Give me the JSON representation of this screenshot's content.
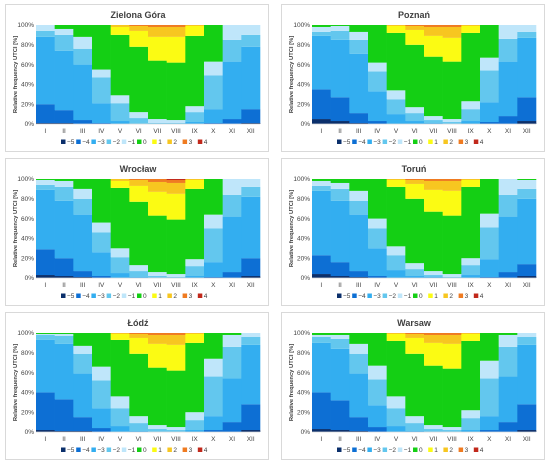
{
  "colors": {
    "-5": "#0b2f6b",
    "-4": "#0d6fd4",
    "-3": "#33aef0",
    "-2": "#63c7ee",
    "-1": "#bfe6fa",
    "0": "#14cf14",
    "1": "#fbfb13",
    "2": "#f7c620",
    "3": "#ef7b21",
    "4": "#c1281b"
  },
  "chart_data": [
    {
      "type": "bar",
      "stacked": true,
      "title": "Zielona Góra",
      "ylabel": "Relative frequency UTCI [%]",
      "yticks": [
        "0%",
        "20%",
        "40%",
        "60%",
        "80%",
        "100%"
      ],
      "ylim": [
        0,
        100
      ],
      "categories": [
        "I",
        "II",
        "III",
        "IV",
        "V",
        "VI",
        "VII",
        "VIII",
        "IX",
        "X",
        "XI",
        "XII"
      ],
      "legend": [
        "−5",
        "−4",
        "−3",
        "−2",
        "−1",
        "0",
        "1",
        "2",
        "3",
        "4"
      ],
      "series": [
        {
          "key": "-5",
          "values": [
            1,
            1,
            0,
            0,
            0,
            0,
            0,
            0,
            0,
            0,
            0,
            1
          ]
        },
        {
          "key": "-4",
          "values": [
            19,
            13,
            4,
            1,
            0,
            0,
            0,
            0,
            0,
            1,
            5,
            14
          ]
        },
        {
          "key": "-3",
          "values": [
            68,
            60,
            56,
            20,
            3,
            0,
            0,
            0,
            2,
            14,
            58,
            63
          ]
        },
        {
          "key": "-2",
          "values": [
            6,
            16,
            16,
            26,
            18,
            6,
            1,
            1,
            10,
            34,
            22,
            12
          ]
        },
        {
          "key": "-1",
          "values": [
            6,
            6,
            12,
            8,
            8,
            6,
            4,
            3,
            6,
            14,
            15,
            10
          ]
        },
        {
          "key": "0",
          "values": [
            0,
            4,
            12,
            45,
            61,
            66,
            59,
            58,
            71,
            37,
            0,
            0
          ]
        },
        {
          "key": "1",
          "values": [
            0,
            0,
            0,
            0,
            8,
            16,
            24,
            26,
            10,
            0,
            0,
            0
          ]
        },
        {
          "key": "2",
          "values": [
            0,
            0,
            0,
            0,
            2,
            5,
            10,
            10,
            1,
            0,
            0,
            0
          ]
        },
        {
          "key": "3",
          "values": [
            0,
            0,
            0,
            0,
            0,
            1,
            2,
            2,
            0,
            0,
            0,
            0
          ]
        },
        {
          "key": "4",
          "values": [
            0,
            0,
            0,
            0,
            0,
            0,
            0,
            0,
            0,
            0,
            0,
            0
          ]
        }
      ]
    },
    {
      "type": "bar",
      "stacked": true,
      "title": "Poznań",
      "ylabel": "Relative frequency UTCI [%]",
      "yticks": [
        "0%",
        "20%",
        "40%",
        "60%",
        "80%",
        "100%"
      ],
      "ylim": [
        0,
        100
      ],
      "categories": [
        "I",
        "II",
        "III",
        "IV",
        "V",
        "VI",
        "VII",
        "VIII",
        "IX",
        "X",
        "XI",
        "XII"
      ],
      "legend": [
        "−5",
        "−4",
        "−3",
        "−2",
        "−1",
        "0",
        "1",
        "2",
        "3",
        "4"
      ],
      "series": [
        {
          "key": "-5",
          "values": [
            5,
            3,
            1,
            0,
            0,
            0,
            0,
            0,
            0,
            0,
            0,
            3
          ]
        },
        {
          "key": "-4",
          "values": [
            30,
            24,
            10,
            3,
            0,
            0,
            0,
            0,
            0,
            2,
            8,
            24
          ]
        },
        {
          "key": "-3",
          "values": [
            54,
            58,
            60,
            30,
            10,
            3,
            1,
            0,
            3,
            20,
            55,
            60
          ]
        },
        {
          "key": "-2",
          "values": [
            4,
            9,
            14,
            20,
            15,
            8,
            3,
            2,
            12,
            32,
            23,
            6
          ]
        },
        {
          "key": "-1",
          "values": [
            5,
            5,
            8,
            9,
            9,
            6,
            4,
            3,
            8,
            13,
            14,
            7
          ]
        },
        {
          "key": "0",
          "values": [
            2,
            1,
            7,
            38,
            58,
            63,
            60,
            58,
            69,
            33,
            0,
            0
          ]
        },
        {
          "key": "1",
          "values": [
            0,
            0,
            0,
            0,
            7,
            15,
            21,
            24,
            7,
            0,
            0,
            0
          ]
        },
        {
          "key": "2",
          "values": [
            0,
            0,
            0,
            0,
            1,
            4,
            9,
            11,
            1,
            0,
            0,
            0
          ]
        },
        {
          "key": "3",
          "values": [
            0,
            0,
            0,
            0,
            0,
            1,
            2,
            2,
            0,
            0,
            0,
            0
          ]
        },
        {
          "key": "4",
          "values": [
            0,
            0,
            0,
            0,
            0,
            0,
            0,
            0,
            0,
            0,
            0,
            0
          ]
        }
      ]
    },
    {
      "type": "bar",
      "stacked": true,
      "title": "Wrocław",
      "ylabel": "Relative frequency UTCI [%]",
      "yticks": [
        "0%",
        "20%",
        "40%",
        "60%",
        "80%",
        "100%"
      ],
      "ylim": [
        0,
        100
      ],
      "categories": [
        "I",
        "II",
        "III",
        "IV",
        "V",
        "VI",
        "VII",
        "VIII",
        "IX",
        "X",
        "XI",
        "XII"
      ],
      "legend": [
        "−5",
        "−4",
        "−3",
        "−2",
        "−1",
        "0",
        "1",
        "2",
        "3",
        "4"
      ],
      "series": [
        {
          "key": "-5",
          "values": [
            3,
            2,
            1,
            0,
            0,
            0,
            0,
            0,
            0,
            0,
            0,
            2
          ]
        },
        {
          "key": "-4",
          "values": [
            26,
            18,
            6,
            2,
            0,
            0,
            0,
            0,
            0,
            1,
            6,
            18
          ]
        },
        {
          "key": "-3",
          "values": [
            60,
            58,
            57,
            24,
            5,
            1,
            0,
            0,
            2,
            15,
            56,
            62
          ]
        },
        {
          "key": "-2",
          "values": [
            5,
            14,
            16,
            20,
            16,
            6,
            2,
            1,
            10,
            34,
            22,
            10
          ]
        },
        {
          "key": "-1",
          "values": [
            5,
            6,
            10,
            10,
            9,
            6,
            4,
            3,
            7,
            14,
            16,
            8
          ]
        },
        {
          "key": "0",
          "values": [
            1,
            2,
            10,
            44,
            61,
            64,
            57,
            55,
            71,
            36,
            0,
            0
          ]
        },
        {
          "key": "1",
          "values": [
            0,
            0,
            0,
            0,
            7,
            16,
            24,
            26,
            9,
            0,
            0,
            0
          ]
        },
        {
          "key": "2",
          "values": [
            0,
            0,
            0,
            0,
            2,
            6,
            10,
            11,
            1,
            0,
            0,
            0
          ]
        },
        {
          "key": "3",
          "values": [
            0,
            0,
            0,
            0,
            0,
            1,
            3,
            3,
            0,
            0,
            0,
            0
          ]
        },
        {
          "key": "4",
          "values": [
            0,
            0,
            0,
            0,
            0,
            0,
            0,
            1,
            0,
            0,
            0,
            0
          ]
        }
      ]
    },
    {
      "type": "bar",
      "stacked": true,
      "title": "Toruń",
      "ylabel": "Relative frequency UTCI [%]",
      "yticks": [
        "0%",
        "20%",
        "40%",
        "60%",
        "80%",
        "100%"
      ],
      "ylim": [
        0,
        100
      ],
      "categories": [
        "I",
        "II",
        "III",
        "IV",
        "V",
        "VI",
        "VII",
        "VIII",
        "IX",
        "X",
        "XI",
        "XII"
      ],
      "legend": [
        "−5",
        "−4",
        "−3",
        "−2",
        "−1",
        "0",
        "1",
        "2",
        "3",
        "4"
      ],
      "series": [
        {
          "key": "-5",
          "values": [
            4,
            2,
            1,
            0,
            0,
            0,
            0,
            0,
            0,
            0,
            0,
            2
          ]
        },
        {
          "key": "-4",
          "values": [
            19,
            14,
            6,
            2,
            0,
            0,
            0,
            0,
            0,
            1,
            6,
            12
          ]
        },
        {
          "key": "-3",
          "values": [
            65,
            62,
            57,
            28,
            8,
            2,
            1,
            0,
            3,
            18,
            56,
            66
          ]
        },
        {
          "key": "-2",
          "values": [
            5,
            12,
            14,
            20,
            15,
            7,
            2,
            1,
            10,
            32,
            22,
            10
          ]
        },
        {
          "key": "-1",
          "values": [
            5,
            6,
            10,
            10,
            9,
            6,
            4,
            3,
            7,
            14,
            16,
            9
          ]
        },
        {
          "key": "0",
          "values": [
            2,
            4,
            12,
            40,
            60,
            65,
            60,
            59,
            72,
            35,
            0,
            1
          ]
        },
        {
          "key": "1",
          "values": [
            0,
            0,
            0,
            0,
            7,
            15,
            22,
            25,
            7,
            0,
            0,
            0
          ]
        },
        {
          "key": "2",
          "values": [
            0,
            0,
            0,
            0,
            1,
            4,
            9,
            10,
            1,
            0,
            0,
            0
          ]
        },
        {
          "key": "3",
          "values": [
            0,
            0,
            0,
            0,
            0,
            1,
            2,
            2,
            0,
            0,
            0,
            0
          ]
        },
        {
          "key": "4",
          "values": [
            0,
            0,
            0,
            0,
            0,
            0,
            0,
            0,
            0,
            0,
            0,
            0
          ]
        }
      ]
    },
    {
      "type": "bar",
      "stacked": true,
      "title": "Łódź",
      "ylabel": "Relative frequency UTCI [%]",
      "yticks": [
        "0%",
        "20%",
        "40%",
        "60%",
        "80%",
        "100%"
      ],
      "ylim": [
        0,
        100
      ],
      "categories": [
        "I",
        "II",
        "III",
        "IV",
        "V",
        "VI",
        "VII",
        "VIII",
        "IX",
        "X",
        "XI",
        "XII"
      ],
      "legend": [
        "−5",
        "−4",
        "−3",
        "−2",
        "−1",
        "0",
        "1",
        "2",
        "3",
        "4"
      ],
      "series": [
        {
          "key": "-5",
          "values": [
            2,
            1,
            1,
            0,
            0,
            0,
            0,
            0,
            0,
            0,
            0,
            2
          ]
        },
        {
          "key": "-4",
          "values": [
            38,
            32,
            14,
            4,
            0,
            0,
            0,
            0,
            0,
            2,
            10,
            26
          ]
        },
        {
          "key": "-3",
          "values": [
            53,
            56,
            44,
            20,
            6,
            1,
            0,
            0,
            2,
            14,
            44,
            60
          ]
        },
        {
          "key": "-2",
          "values": [
            5,
            8,
            20,
            28,
            18,
            8,
            3,
            2,
            10,
            40,
            32,
            8
          ]
        },
        {
          "key": "-1",
          "values": [
            1,
            2,
            8,
            14,
            12,
            7,
            4,
            3,
            8,
            18,
            12,
            4
          ]
        },
        {
          "key": "0",
          "values": [
            1,
            1,
            13,
            34,
            57,
            63,
            58,
            57,
            70,
            26,
            2,
            0
          ]
        },
        {
          "key": "1",
          "values": [
            0,
            0,
            0,
            0,
            6,
            16,
            24,
            26,
            9,
            0,
            0,
            0
          ]
        },
        {
          "key": "2",
          "values": [
            0,
            0,
            0,
            0,
            1,
            4,
            9,
            10,
            1,
            0,
            0,
            0
          ]
        },
        {
          "key": "3",
          "values": [
            0,
            0,
            0,
            0,
            0,
            1,
            2,
            2,
            0,
            0,
            0,
            0
          ]
        },
        {
          "key": "4",
          "values": [
            0,
            0,
            0,
            0,
            0,
            0,
            0,
            0,
            0,
            0,
            0,
            0
          ]
        }
      ]
    },
    {
      "type": "bar",
      "stacked": true,
      "title": "Warsaw",
      "ylabel": "Relative frequency UTCI [%]",
      "yticks": [
        "0%",
        "20%",
        "40%",
        "60%",
        "80%",
        "100%"
      ],
      "ylim": [
        0,
        100
      ],
      "categories": [
        "I",
        "II",
        "III",
        "IV",
        "V",
        "VI",
        "VII",
        "VIII",
        "IX",
        "X",
        "XI",
        "XII"
      ],
      "legend": [
        "−5",
        "−4",
        "−3",
        "−2",
        "−1",
        "0",
        "1",
        "2",
        "3",
        "4"
      ],
      "series": [
        {
          "key": "-5",
          "values": [
            3,
            2,
            1,
            0,
            0,
            0,
            0,
            0,
            0,
            0,
            0,
            2
          ]
        },
        {
          "key": "-4",
          "values": [
            37,
            30,
            14,
            5,
            0,
            0,
            0,
            0,
            0,
            2,
            10,
            26
          ]
        },
        {
          "key": "-3",
          "values": [
            50,
            52,
            44,
            22,
            6,
            1,
            0,
            0,
            2,
            14,
            46,
            60
          ]
        },
        {
          "key": "-2",
          "values": [
            6,
            10,
            20,
            26,
            18,
            8,
            3,
            2,
            12,
            38,
            30,
            8
          ]
        },
        {
          "key": "-1",
          "values": [
            2,
            4,
            10,
            14,
            12,
            7,
            4,
            3,
            8,
            18,
            12,
            4
          ]
        },
        {
          "key": "0",
          "values": [
            2,
            2,
            11,
            33,
            56,
            63,
            60,
            59,
            70,
            28,
            2,
            0
          ]
        },
        {
          "key": "1",
          "values": [
            0,
            0,
            0,
            0,
            7,
            16,
            23,
            25,
            7,
            0,
            0,
            0
          ]
        },
        {
          "key": "2",
          "values": [
            0,
            0,
            0,
            0,
            1,
            4,
            8,
            9,
            1,
            0,
            0,
            0
          ]
        },
        {
          "key": "3",
          "values": [
            0,
            0,
            0,
            0,
            0,
            1,
            2,
            2,
            0,
            0,
            0,
            0
          ]
        },
        {
          "key": "4",
          "values": [
            0,
            0,
            0,
            0,
            0,
            0,
            0,
            0,
            0,
            0,
            0,
            0
          ]
        }
      ]
    }
  ]
}
